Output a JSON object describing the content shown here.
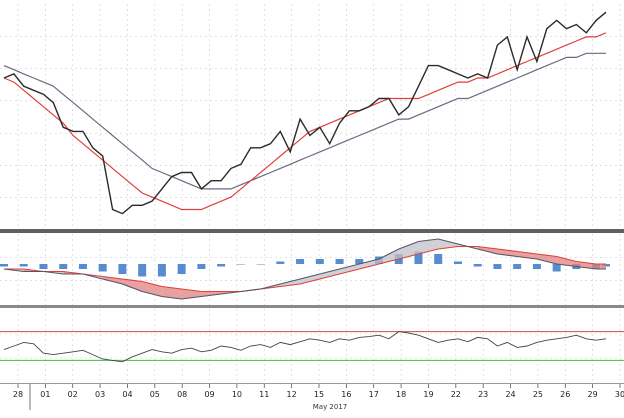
{
  "chart_data": [
    {
      "type": "line",
      "panel": "price",
      "x": [
        0,
        2,
        4,
        6,
        8,
        10,
        12,
        14,
        16,
        18,
        20,
        22,
        24,
        26,
        28,
        30,
        32,
        34,
        36,
        38,
        40,
        42,
        44,
        46,
        48,
        50,
        52,
        54,
        56,
        58,
        60,
        62,
        64,
        66,
        68,
        70,
        72,
        74,
        76,
        78,
        80,
        82,
        84,
        86,
        88,
        90,
        92,
        94,
        96,
        98,
        100,
        102,
        104,
        106,
        108,
        110,
        112,
        114,
        116,
        118,
        120,
        122
      ],
      "series": [
        {
          "values": [
            52,
            53,
            50,
            49,
            48,
            46,
            40,
            39,
            39,
            35,
            33,
            20,
            19,
            21,
            21,
            22,
            25,
            28,
            29,
            29,
            25,
            27,
            27,
            30,
            31,
            35,
            35,
            36,
            39,
            34,
            42,
            38,
            40,
            36,
            41,
            44,
            44,
            45,
            47,
            47,
            43,
            45,
            50,
            55,
            55,
            54,
            53,
            52,
            53,
            52,
            60,
            62,
            54,
            62,
            56,
            64,
            66,
            64,
            65,
            63,
            66,
            68
          ]
        },
        {
          "values": [
            52,
            51,
            49,
            47,
            45,
            43,
            41,
            38,
            36,
            34,
            32,
            30,
            28,
            26,
            24,
            23,
            22,
            21,
            20,
            20,
            20,
            21,
            22,
            23,
            25,
            27,
            29,
            31,
            33,
            35,
            37,
            39,
            40,
            41,
            42,
            43,
            44,
            45,
            46,
            47,
            47,
            47,
            47,
            48,
            49,
            50,
            51,
            51,
            52,
            52,
            53,
            54,
            55,
            56,
            57,
            58,
            59,
            60,
            61,
            62,
            62,
            63
          ]
        },
        {
          "values": [
            55,
            54,
            53,
            52,
            51,
            50,
            48,
            46,
            44,
            42,
            40,
            38,
            36,
            34,
            32,
            30,
            29,
            28,
            27,
            26,
            25,
            25,
            25,
            25,
            26,
            27,
            28,
            29,
            30,
            31,
            32,
            33,
            34,
            35,
            36,
            37,
            38,
            39,
            40,
            41,
            42,
            42,
            43,
            44,
            45,
            46,
            47,
            47,
            48,
            49,
            50,
            51,
            52,
            53,
            54,
            55,
            56,
            57,
            57,
            58,
            58,
            58
          ]
        }
      ],
      "ylim": [
        15,
        70
      ]
    },
    {
      "type": "area",
      "panel": "macd",
      "x": [
        0,
        4,
        8,
        12,
        16,
        20,
        24,
        28,
        32,
        36,
        40,
        44,
        48,
        52,
        56,
        60,
        64,
        68,
        72,
        76,
        80,
        84,
        88,
        92,
        96,
        100,
        104,
        108,
        112,
        116,
        120,
        122
      ],
      "series": [
        {
          "values": [
            -2,
            -3,
            -3,
            -4,
            -4,
            -6,
            -8,
            -11,
            -13,
            -14,
            -13,
            -12,
            -11,
            -10,
            -8,
            -6,
            -4,
            -2,
            0,
            2,
            6,
            9,
            10,
            8,
            6,
            4,
            3,
            2,
            0,
            -1,
            -2,
            -2
          ]
        },
        {
          "values": [
            -2,
            -2,
            -3,
            -3,
            -4,
            -5,
            -6,
            -7,
            -9,
            -10,
            -11,
            -11,
            -11,
            -10,
            -9,
            -8,
            -6,
            -4,
            -2,
            0,
            2,
            4,
            6,
            7,
            7,
            6,
            5,
            4,
            3,
            1,
            0,
            0
          ]
        },
        {
          "values": [
            -1,
            -1,
            -2,
            -2,
            -2,
            -3,
            -4,
            -5,
            -5,
            -4,
            -2,
            -1,
            0,
            0,
            1,
            2,
            2,
            2,
            2,
            3,
            4,
            5,
            4,
            1,
            -1,
            -2,
            -2,
            -2,
            -3,
            -2,
            -2,
            -1
          ]
        }
      ],
      "ylim": [
        -16,
        12
      ]
    },
    {
      "type": "line",
      "panel": "oscillator",
      "x": [
        0,
        2,
        4,
        6,
        8,
        10,
        12,
        14,
        16,
        18,
        20,
        22,
        24,
        26,
        28,
        30,
        32,
        34,
        36,
        38,
        40,
        42,
        44,
        46,
        48,
        50,
        52,
        54,
        56,
        58,
        60,
        62,
        64,
        66,
        68,
        70,
        72,
        74,
        76,
        78,
        80,
        82,
        84,
        86,
        88,
        90,
        92,
        94,
        96,
        98,
        100,
        102,
        104,
        106,
        108,
        110,
        112,
        114,
        116,
        118,
        120,
        122
      ],
      "series": [
        {
          "values": [
            45,
            50,
            55,
            53,
            40,
            38,
            40,
            42,
            44,
            38,
            32,
            30,
            28,
            35,
            40,
            45,
            42,
            40,
            45,
            47,
            42,
            44,
            50,
            48,
            44,
            50,
            52,
            48,
            55,
            52,
            56,
            60,
            58,
            55,
            60,
            58,
            62,
            63,
            65,
            60,
            70,
            68,
            65,
            60,
            55,
            58,
            60,
            56,
            62,
            60,
            50,
            55,
            48,
            50,
            55,
            58,
            60,
            62,
            65,
            60,
            58,
            60
          ]
        }
      ],
      "ylim": [
        0,
        100
      ],
      "reference_lines": [
        70,
        30
      ]
    }
  ],
  "x_axis": {
    "tick_labels": [
      "28",
      "01",
      "02",
      "03",
      "04",
      "05",
      "08",
      "09",
      "10",
      "11",
      "12",
      "15",
      "16",
      "17",
      "18",
      "19",
      "22",
      "23",
      "24",
      "25",
      "26",
      "29",
      "30"
    ],
    "month_label": "May 2017"
  },
  "colors": {
    "price_line": "#2a2a2a",
    "fast_ma": "#e0403a",
    "slow_ma": "#6a6a80",
    "macd_line": "#555566",
    "signal_line": "#e0403a",
    "histogram": "#3a78c8",
    "fill_bear": "#e08080",
    "fill_bull": "#c0c0c8",
    "ref_upper": "#d04848",
    "ref_lower": "#40c040",
    "grid": "#cfcfcf",
    "separator": "#606060"
  }
}
